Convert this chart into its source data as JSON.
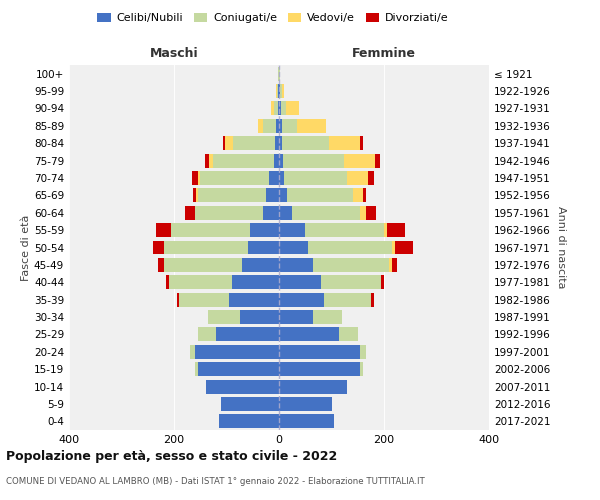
{
  "age_groups": [
    "0-4",
    "5-9",
    "10-14",
    "15-19",
    "20-24",
    "25-29",
    "30-34",
    "35-39",
    "40-44",
    "45-49",
    "50-54",
    "55-59",
    "60-64",
    "65-69",
    "70-74",
    "75-79",
    "80-84",
    "85-89",
    "90-94",
    "95-99",
    "100+"
  ],
  "birth_years": [
    "2017-2021",
    "2012-2016",
    "2007-2011",
    "2002-2006",
    "1997-2001",
    "1992-1996",
    "1987-1991",
    "1982-1986",
    "1977-1981",
    "1972-1976",
    "1967-1971",
    "1962-1966",
    "1957-1961",
    "1952-1956",
    "1947-1951",
    "1942-1946",
    "1937-1941",
    "1932-1936",
    "1927-1931",
    "1922-1926",
    "≤ 1921"
  ],
  "maschi": {
    "celibi": [
      115,
      110,
      140,
      155,
      160,
      120,
      75,
      95,
      90,
      70,
      60,
      55,
      30,
      25,
      20,
      10,
      8,
      5,
      2,
      1,
      0
    ],
    "coniugati": [
      0,
      0,
      0,
      5,
      10,
      35,
      60,
      95,
      120,
      150,
      160,
      150,
      130,
      130,
      130,
      115,
      80,
      25,
      8,
      3,
      1
    ],
    "vedovi": [
      0,
      0,
      0,
      0,
      0,
      0,
      0,
      0,
      0,
      0,
      0,
      0,
      0,
      3,
      5,
      8,
      15,
      10,
      5,
      1,
      0
    ],
    "divorziati": [
      0,
      0,
      0,
      0,
      0,
      0,
      0,
      5,
      5,
      10,
      20,
      30,
      20,
      5,
      10,
      8,
      3,
      0,
      0,
      0,
      0
    ]
  },
  "femmine": {
    "nubili": [
      105,
      100,
      130,
      155,
      155,
      115,
      65,
      85,
      80,
      65,
      55,
      50,
      25,
      15,
      10,
      8,
      5,
      5,
      3,
      1,
      0
    ],
    "coniugate": [
      0,
      0,
      0,
      5,
      10,
      35,
      55,
      90,
      115,
      145,
      160,
      150,
      130,
      125,
      120,
      115,
      90,
      30,
      10,
      4,
      1
    ],
    "vedove": [
      0,
      0,
      0,
      0,
      0,
      0,
      0,
      0,
      0,
      5,
      5,
      5,
      10,
      20,
      40,
      60,
      60,
      55,
      25,
      5,
      1
    ],
    "divorziate": [
      0,
      0,
      0,
      0,
      0,
      0,
      0,
      5,
      5,
      10,
      35,
      35,
      20,
      5,
      10,
      10,
      5,
      0,
      0,
      0,
      0
    ]
  },
  "colors": {
    "celibi": "#4472c4",
    "coniugati": "#c5d9a0",
    "vedovi": "#ffd966",
    "divorziati": "#cc0000"
  },
  "title": "Popolazione per età, sesso e stato civile - 2022",
  "subtitle": "COMUNE DI VEDANO AL LAMBRO (MB) - Dati ISTAT 1° gennaio 2022 - Elaborazione TUTTITALIA.IT",
  "xlim": 400,
  "background_color": "#f0f0f0",
  "legend_labels": [
    "Celibi/Nubili",
    "Coniugati/e",
    "Vedovi/e",
    "Divorziati/e"
  ]
}
